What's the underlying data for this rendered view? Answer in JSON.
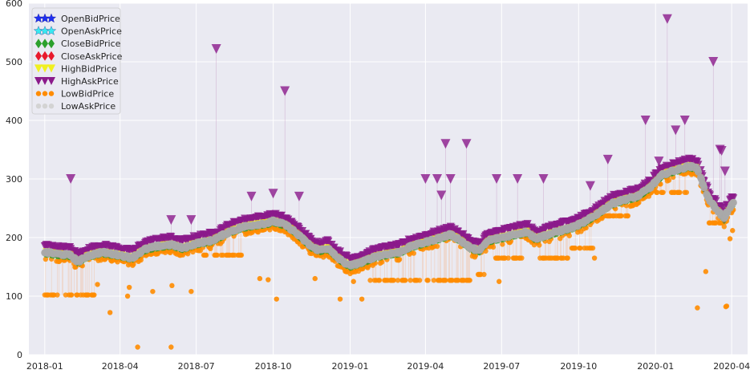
{
  "chart_data": {
    "type": "line",
    "title": "",
    "xlabel": "",
    "ylabel": "",
    "ylim": [
      0,
      600
    ],
    "xlim": [
      "2017-12-13",
      "2020-04-20"
    ],
    "x_ticks": [
      "2018-01",
      "2018-04",
      "2018-07",
      "2018-10",
      "2019-01",
      "2019-04",
      "2019-07",
      "2019-10",
      "2020-01",
      "2020-04"
    ],
    "y_ticks": [
      0,
      100,
      200,
      300,
      400,
      500,
      600
    ],
    "grid": true,
    "background": "#eaeaf2",
    "legend_placement": "top-left",
    "series": [
      {
        "name": "OpenBidPrice",
        "marker": "star",
        "color": "#1f2ff0"
      },
      {
        "name": "OpenAskPrice",
        "marker": "star",
        "color": "#38e8f0"
      },
      {
        "name": "CloseBidPrice",
        "marker": "diamond",
        "color": "#2ca02c"
      },
      {
        "name": "CloseAskPrice",
        "marker": "diamond",
        "color": "#e8192c"
      },
      {
        "name": "HighBidPrice",
        "marker": "triangle-down",
        "color": "#f0f020"
      },
      {
        "name": "HighAskPrice",
        "marker": "triangle-down",
        "color": "#8b1a8b"
      },
      {
        "name": "LowBidPrice",
        "marker": "circle",
        "color": "#ff8c00"
      },
      {
        "name": "LowAskPrice",
        "marker": "circle",
        "color": "#d3d3d3"
      }
    ],
    "price_path": [
      [
        "2018-01-01",
        175
      ],
      [
        "2018-01-15",
        172
      ],
      [
        "2018-02-01",
        170
      ],
      [
        "2018-02-10",
        158
      ],
      [
        "2018-02-20",
        168
      ],
      [
        "2018-03-10",
        175
      ],
      [
        "2018-04-01",
        170
      ],
      [
        "2018-04-15",
        165
      ],
      [
        "2018-05-01",
        180
      ],
      [
        "2018-05-15",
        185
      ],
      [
        "2018-06-01",
        188
      ],
      [
        "2018-06-15",
        182
      ],
      [
        "2018-07-01",
        190
      ],
      [
        "2018-07-20",
        195
      ],
      [
        "2018-08-10",
        210
      ],
      [
        "2018-08-25",
        218
      ],
      [
        "2018-09-10",
        222
      ],
      [
        "2018-09-25",
        225
      ],
      [
        "2018-10-01",
        228
      ],
      [
        "2018-10-15",
        222
      ],
      [
        "2018-10-25",
        212
      ],
      [
        "2018-11-05",
        198
      ],
      [
        "2018-11-15",
        185
      ],
      [
        "2018-11-25",
        178
      ],
      [
        "2018-12-05",
        182
      ],
      [
        "2018-12-15",
        168
      ],
      [
        "2018-12-24",
        158
      ],
      [
        "2019-01-01",
        152
      ],
      [
        "2019-01-15",
        158
      ],
      [
        "2019-02-01",
        168
      ],
      [
        "2019-02-15",
        172
      ],
      [
        "2019-03-01",
        175
      ],
      [
        "2019-03-15",
        185
      ],
      [
        "2019-04-01",
        192
      ],
      [
        "2019-04-15",
        198
      ],
      [
        "2019-05-01",
        205
      ],
      [
        "2019-05-10",
        198
      ],
      [
        "2019-05-25",
        182
      ],
      [
        "2019-06-05",
        178
      ],
      [
        "2019-06-15",
        195
      ],
      [
        "2019-07-01",
        200
      ],
      [
        "2019-07-15",
        205
      ],
      [
        "2019-08-01",
        210
      ],
      [
        "2019-08-10",
        198
      ],
      [
        "2019-08-25",
        205
      ],
      [
        "2019-09-10",
        212
      ],
      [
        "2019-09-25",
        218
      ],
      [
        "2019-10-10",
        228
      ],
      [
        "2019-10-25",
        242
      ],
      [
        "2019-11-10",
        258
      ],
      [
        "2019-11-25",
        265
      ],
      [
        "2019-12-10",
        270
      ],
      [
        "2019-12-25",
        285
      ],
      [
        "2020-01-10",
        308
      ],
      [
        "2020-01-25",
        315
      ],
      [
        "2020-02-10",
        322
      ],
      [
        "2020-02-20",
        318
      ],
      [
        "2020-02-28",
        285
      ],
      [
        "2020-03-05",
        265
      ],
      [
        "2020-03-10",
        255
      ],
      [
        "2020-03-16",
        245
      ],
      [
        "2020-03-23",
        232
      ],
      [
        "2020-03-28",
        248
      ],
      [
        "2020-04-03",
        258
      ]
    ],
    "high_spikes": [
      [
        "2018-02-01",
        300
      ],
      [
        "2018-07-25",
        522
      ],
      [
        "2018-10-15",
        450
      ],
      [
        "2018-10-01",
        275
      ],
      [
        "2018-09-05",
        270
      ],
      [
        "2018-11-01",
        270
      ],
      [
        "2018-06-01",
        230
      ],
      [
        "2018-06-25",
        230
      ],
      [
        "2019-04-01",
        300
      ],
      [
        "2019-04-15",
        300
      ],
      [
        "2019-04-25",
        360
      ],
      [
        "2019-05-01",
        300
      ],
      [
        "2019-05-20",
        360
      ],
      [
        "2019-04-20",
        272
      ],
      [
        "2019-06-25",
        300
      ],
      [
        "2019-07-20",
        300
      ],
      [
        "2019-08-20",
        300
      ],
      [
        "2019-10-15",
        288
      ],
      [
        "2019-11-05",
        333
      ],
      [
        "2019-12-20",
        400
      ],
      [
        "2020-01-15",
        573
      ],
      [
        "2020-01-25",
        383
      ],
      [
        "2020-02-05",
        400
      ],
      [
        "2020-03-10",
        500
      ],
      [
        "2020-03-18",
        350
      ],
      [
        "2020-03-24",
        313
      ],
      [
        "2020-01-05",
        330
      ],
      [
        "2020-03-20",
        348
      ]
    ],
    "low_bid_levels": [
      {
        "start": "2018-01-01",
        "end": "2018-03-01",
        "value": 102
      },
      {
        "start": "2018-07-10",
        "end": "2018-08-25",
        "value": 170
      },
      {
        "start": "2019-01-25",
        "end": "2019-05-25",
        "value": 127
      },
      {
        "start": "2019-06-01",
        "end": "2019-06-10",
        "value": 137
      },
      {
        "start": "2019-06-20",
        "end": "2019-07-25",
        "value": 165
      },
      {
        "start": "2019-08-15",
        "end": "2019-09-20",
        "value": 165
      },
      {
        "start": "2019-09-20",
        "end": "2019-10-20",
        "value": 182
      },
      {
        "start": "2019-11-01",
        "end": "2019-12-01",
        "value": 237
      },
      {
        "start": "2020-01-01",
        "end": "2020-02-10",
        "value": 277
      },
      {
        "start": "2020-03-05",
        "end": "2020-03-20",
        "value": 225
      }
    ],
    "low_outliers": [
      [
        "2018-03-20",
        72
      ],
      [
        "2018-04-22",
        13
      ],
      [
        "2018-06-01",
        13
      ],
      [
        "2018-04-10",
        100
      ],
      [
        "2018-04-12",
        115
      ],
      [
        "2018-05-10",
        108
      ],
      [
        "2018-06-02",
        118
      ],
      [
        "2018-06-25",
        108
      ],
      [
        "2018-10-05",
        95
      ],
      [
        "2018-09-25",
        128
      ],
      [
        "2018-09-15",
        130
      ],
      [
        "2018-12-20",
        95
      ],
      [
        "2019-01-15",
        95
      ],
      [
        "2019-06-28",
        125
      ],
      [
        "2019-10-20",
        165
      ],
      [
        "2020-02-20",
        80
      ],
      [
        "2020-03-01",
        142
      ],
      [
        "2020-03-25",
        82
      ],
      [
        "2020-03-26",
        83
      ],
      [
        "2020-03-30",
        198
      ],
      [
        "2020-04-02",
        212
      ],
      [
        "2018-11-20",
        130
      ],
      [
        "2019-01-05",
        125
      ],
      [
        "2018-03-05",
        120
      ]
    ]
  }
}
